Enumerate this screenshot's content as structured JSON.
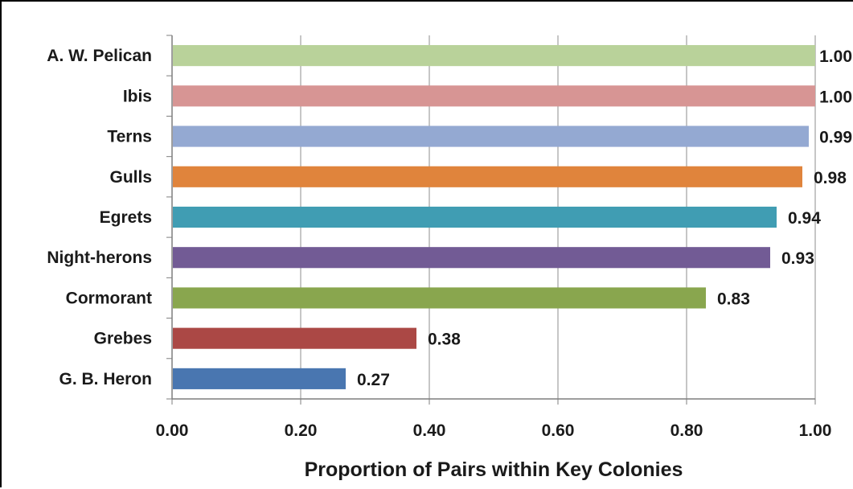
{
  "chart_data": {
    "type": "bar",
    "orientation": "horizontal",
    "categories": [
      "A. W. Pelican",
      "Ibis",
      "Terns",
      "Gulls",
      "Egrets",
      "Night-herons",
      "Cormorant",
      "Grebes",
      "G. B. Heron"
    ],
    "values": [
      1.0,
      1.0,
      0.99,
      0.98,
      0.94,
      0.93,
      0.83,
      0.38,
      0.27
    ],
    "data_labels": [
      "1.00",
      "1.00",
      "0.99",
      "0.98",
      "0.94",
      "0.93",
      "0.83",
      "0.38",
      "0.27"
    ],
    "colors": [
      "#b9d29a",
      "#d79594",
      "#94a9d2",
      "#e0843c",
      "#409db3",
      "#725b95",
      "#89a64e",
      "#ab4845",
      "#4976b0"
    ],
    "xlabel": "Proportion of Pairs within Key Colonies",
    "ylabel": "",
    "title": "",
    "xlim": [
      0,
      1.0
    ],
    "x_ticks": [
      0,
      0.2,
      0.4,
      0.6,
      0.8,
      1.0
    ],
    "x_tick_labels": [
      "0.00",
      "0.20",
      "0.40",
      "0.60",
      "0.80",
      "1.00"
    ],
    "grid": "vertical",
    "legend": "none"
  }
}
